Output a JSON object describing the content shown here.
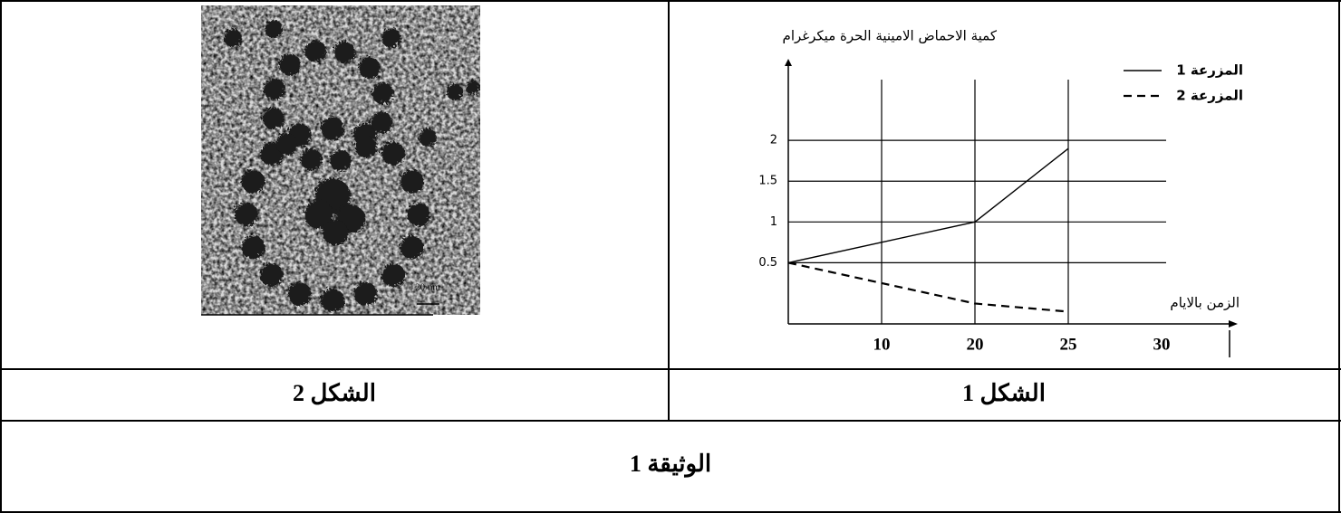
{
  "figure_2": {
    "scale_label": "20 nm",
    "caption": "الشكل 2"
  },
  "chart_data": {
    "type": "line",
    "y_label": "كمية الاحماض الامينية الحرة ميكرغرام",
    "x_label": "الزمن بالايام",
    "caption": "الشكل 1",
    "categories": [
      null,
      "10",
      "20",
      "25",
      "30"
    ],
    "series": [
      {
        "name": "المزرعة 1",
        "color": "#000000",
        "dash": false,
        "values": [
          0.5,
          0.75,
          1,
          1.9,
          null
        ]
      },
      {
        "name": "المزرعة 2",
        "color": "#000000",
        "dash": true,
        "values": [
          0.5,
          0.25,
          0,
          -0.1,
          null
        ]
      }
    ],
    "ylim": [
      -0.25,
      3
    ],
    "yticks": [
      0.5,
      1,
      1.5,
      2
    ],
    "grid": true,
    "legend": "top-right"
  },
  "document_title": "الوثيقة 1"
}
